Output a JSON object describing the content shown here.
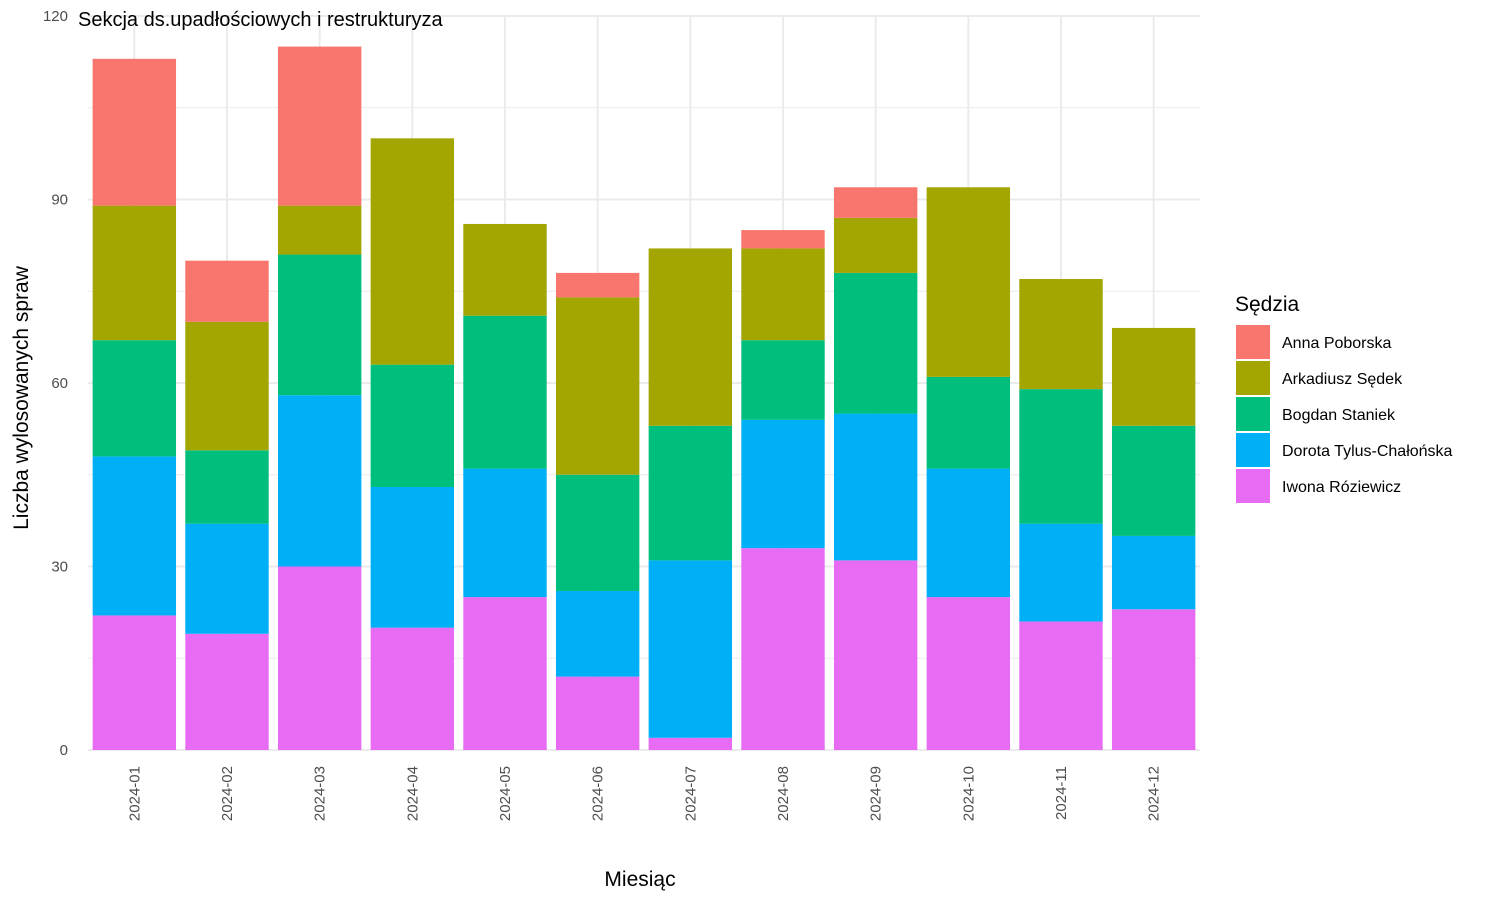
{
  "chart_data": {
    "type": "bar",
    "stacked": true,
    "title": "Sekcja ds.upadłościowych i restrukturyza",
    "xlabel": "Miesiąc",
    "ylabel": "Liczba wylosowanych spraw",
    "ylim": [
      0,
      120
    ],
    "yticks": [
      0,
      30,
      60,
      90,
      120
    ],
    "grid": true,
    "legend": {
      "title": "Sędzia",
      "position": "right"
    },
    "categories": [
      "2024-01",
      "2024-02",
      "2024-03",
      "2024-04",
      "2024-05",
      "2024-06",
      "2024-07",
      "2024-08",
      "2024-09",
      "2024-10",
      "2024-11",
      "2024-12"
    ],
    "series": [
      {
        "name": "Iwona Róziewicz",
        "color": "#E76BF3",
        "values": [
          22,
          19,
          30,
          20,
          25,
          12,
          2,
          33,
          31,
          25,
          21,
          23
        ]
      },
      {
        "name": "Dorota Tylus-Chałońska",
        "color": "#00B0F6",
        "values": [
          26,
          18,
          28,
          23,
          21,
          14,
          29,
          21,
          24,
          21,
          16,
          12
        ]
      },
      {
        "name": "Bogdan Staniek",
        "color": "#00BF7D",
        "values": [
          19,
          12,
          23,
          20,
          25,
          19,
          22,
          13,
          23,
          15,
          22,
          18
        ]
      },
      {
        "name": "Arkadiusz Sędek",
        "color": "#A3A500",
        "values": [
          22,
          21,
          8,
          37,
          15,
          29,
          29,
          15,
          9,
          31,
          18,
          16
        ]
      },
      {
        "name": "Anna Poborska",
        "color": "#F8766D",
        "values": [
          24,
          10,
          26,
          0,
          0,
          4,
          0,
          3,
          5,
          0,
          0,
          0
        ]
      }
    ],
    "legend_order": [
      "Anna Poborska",
      "Arkadiusz Sędek",
      "Bogdan Staniek",
      "Dorota Tylus-Chałońska",
      "Iwona Róziewicz"
    ]
  }
}
